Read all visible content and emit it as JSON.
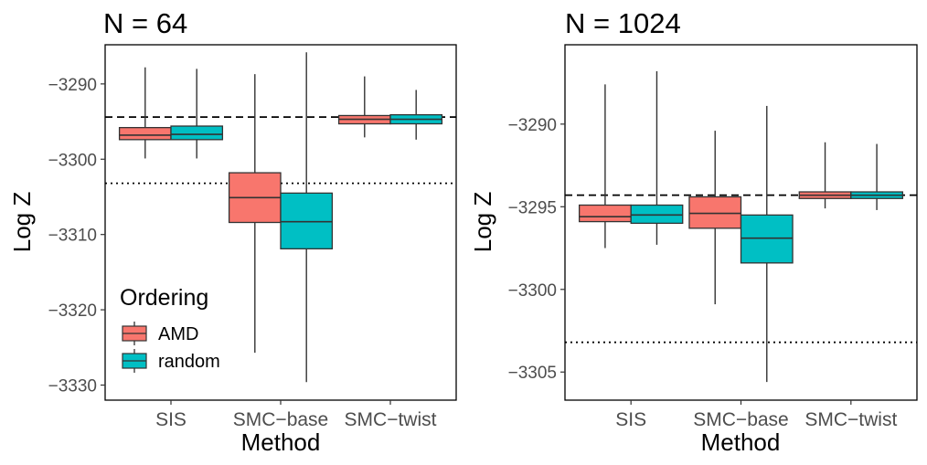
{
  "chart_data": [
    {
      "type": "boxplot",
      "title": "N = 64",
      "xlabel": "Method",
      "ylabel": "Log Z",
      "categories": [
        "SIS",
        "SMC−base",
        "SMC−twist"
      ],
      "ylim": [
        -3332,
        -3284.8
      ],
      "yticks": [
        -3290,
        -3300,
        -3310,
        -3320,
        -3330
      ],
      "ytick_labels": [
        "−3290",
        "−3300",
        "−3310",
        "−3320",
        "−3330"
      ],
      "reference_lines": {
        "dashed": -3294.4,
        "dotted": -3303.2
      },
      "series": [
        {
          "name": "AMD",
          "color": "#F8766D",
          "boxes": [
            {
              "min": -3299.9,
              "q1": -3297.4,
              "median": -3296.8,
              "q3": -3295.8,
              "max": -3287.8
            },
            {
              "min": -3325.7,
              "q1": -3308.4,
              "median": -3305.1,
              "q3": -3301.8,
              "max": -3288.7
            },
            {
              "min": -3297.1,
              "q1": -3295.3,
              "median": -3294.7,
              "q3": -3294.2,
              "max": -3289.0
            }
          ]
        },
        {
          "name": "random",
          "color": "#00BFC4",
          "boxes": [
            {
              "min": -3299.9,
              "q1": -3297.4,
              "median": -3296.7,
              "q3": -3295.6,
              "max": -3288.0
            },
            {
              "min": -3329.6,
              "q1": -3311.9,
              "median": -3308.3,
              "q3": -3304.5,
              "max": -3285.8
            },
            {
              "min": -3297.4,
              "q1": -3295.3,
              "median": -3294.7,
              "q3": -3294.1,
              "max": -3290.8
            }
          ]
        }
      ],
      "legend": {
        "title": "Ordering",
        "position": "inside-bottom-left",
        "entries": [
          "AMD",
          "random"
        ]
      }
    },
    {
      "type": "boxplot",
      "title": "N = 1024",
      "xlabel": "Method",
      "ylabel": "Log Z",
      "categories": [
        "SIS",
        "SMC−base",
        "SMC−twist"
      ],
      "ylim": [
        -3306.7,
        -3285.2
      ],
      "yticks": [
        -3290,
        -3295,
        -3300,
        -3305
      ],
      "ytick_labels": [
        "−3290",
        "−3295",
        "−3300",
        "−3305"
      ],
      "reference_lines": {
        "dashed": -3294.3,
        "dotted": -3303.2
      },
      "series": [
        {
          "name": "AMD",
          "color": "#F8766D",
          "boxes": [
            {
              "min": -3297.5,
              "q1": -3295.9,
              "median": -3295.6,
              "q3": -3294.9,
              "max": -3287.6
            },
            {
              "min": -3300.9,
              "q1": -3296.3,
              "median": -3295.4,
              "q3": -3294.4,
              "max": -3290.4
            },
            {
              "min": -3295.1,
              "q1": -3294.5,
              "median": -3294.3,
              "q3": -3294.1,
              "max": -3291.1
            }
          ]
        },
        {
          "name": "random",
          "color": "#00BFC4",
          "boxes": [
            {
              "min": -3297.3,
              "q1": -3296.0,
              "median": -3295.5,
              "q3": -3294.9,
              "max": -3286.8
            },
            {
              "min": -3305.6,
              "q1": -3298.4,
              "median": -3296.9,
              "q3": -3295.5,
              "max": -3288.9
            },
            {
              "min": -3295.2,
              "q1": -3294.5,
              "median": -3294.3,
              "q3": -3294.1,
              "max": -3291.2
            }
          ]
        }
      ]
    }
  ]
}
